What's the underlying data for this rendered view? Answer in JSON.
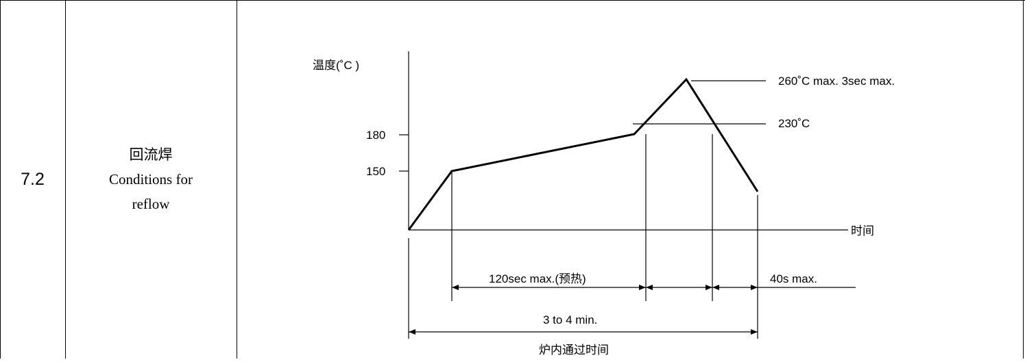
{
  "section_number": "7.2",
  "section_title_cn": "回流焊",
  "section_title_en_line1": "Conditions for",
  "section_title_en_line2": "reflow",
  "diagram": {
    "y_axis_label": "温度(˚C )",
    "x_axis_label": "时间",
    "tick_180": "180",
    "tick_150": "150",
    "peak_label": "260˚C max. 3sec max.",
    "level_230_label": "230˚C",
    "preheat_label": "120sec max.(预热)",
    "above230_label": "40s max.",
    "total_label": "3 to 4 min.",
    "oven_label": "炉内通过时间"
  }
}
